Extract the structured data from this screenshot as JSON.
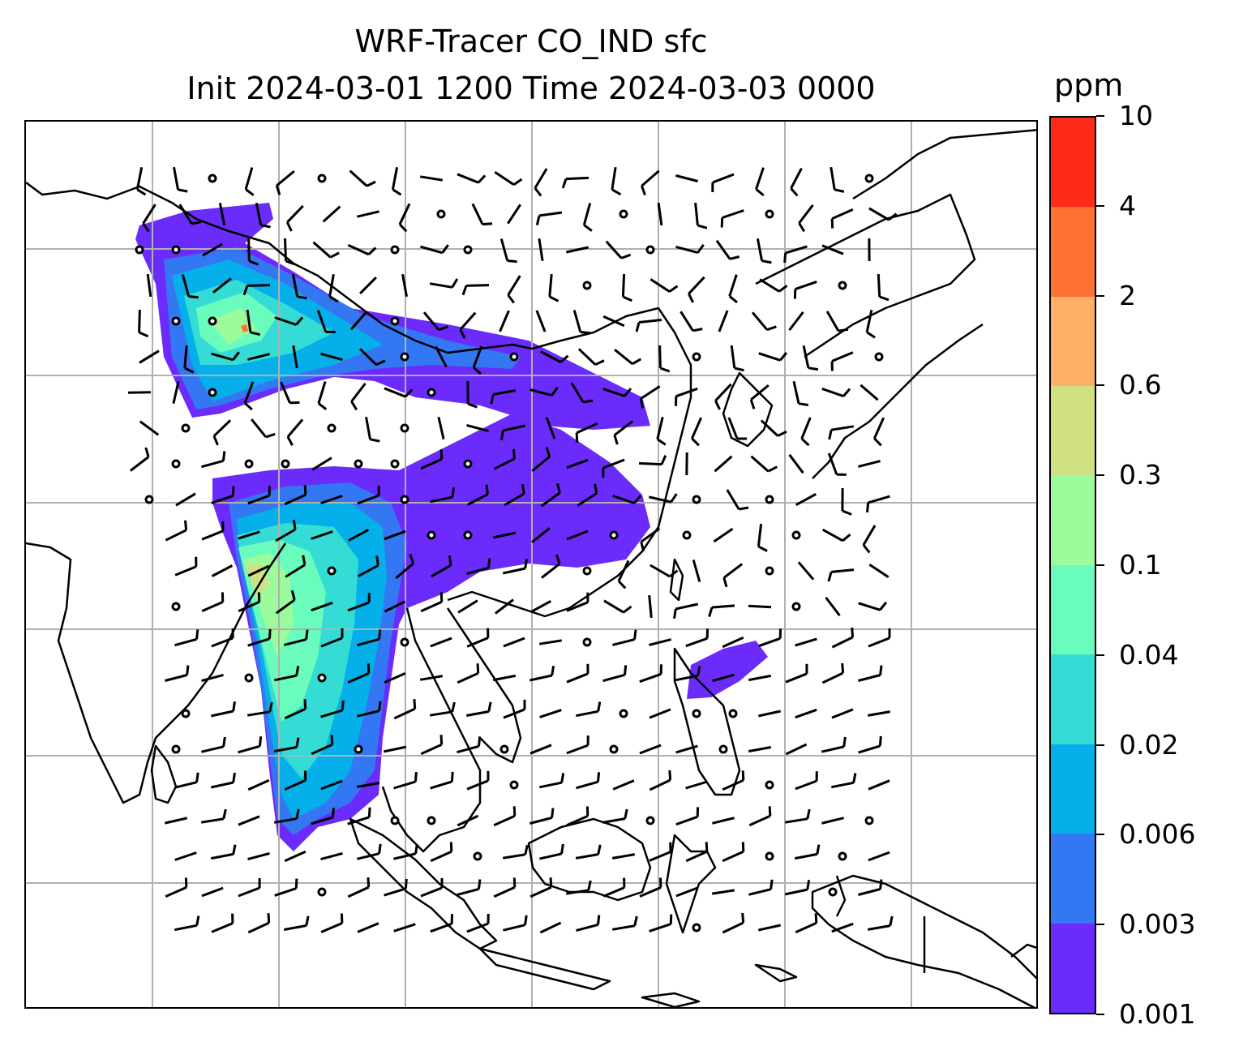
{
  "title": {
    "line1": "WRF-Tracer CO_IND sfc",
    "line2": "Init 2024-03-01 1200 Time 2024-03-03 0000"
  },
  "colorbar": {
    "units": "ppm",
    "levels": [
      "0.001",
      "0.003",
      "0.006",
      "0.02",
      "0.04",
      "0.1",
      "0.3",
      "0.6",
      "2",
      "4",
      "10"
    ],
    "colors": [
      "#6a2bfb",
      "#3477f2",
      "#05b0ea",
      "#35dcd5",
      "#6afcbd",
      "#9cfb9a",
      "#d0e183",
      "#feb066",
      "#ff7035",
      "#ff2a19"
    ]
  },
  "map": {
    "projection_grid": true,
    "grid_color": "#b0b0b0",
    "coastline_color": "#000000",
    "features": [
      "coastlines",
      "country-borders",
      "wind-barbs",
      "calm-circles",
      "tracer-concentration-fill"
    ]
  }
}
